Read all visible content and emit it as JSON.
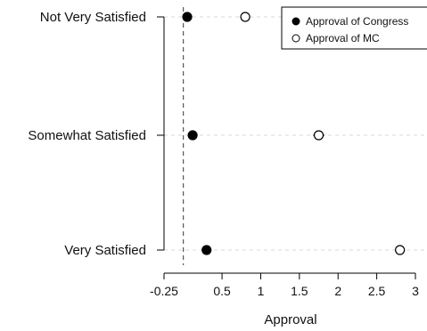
{
  "chart_data": {
    "type": "scatter",
    "categories": [
      "Not Very Satisfied",
      "Somewhat Satisfied",
      "Very Satisfied"
    ],
    "series": [
      {
        "name": "Approval of Congress",
        "marker": "filled-circle",
        "color": "#000000",
        "values": [
          0.05,
          0.12,
          0.3
        ],
        "errors": [
          0.06,
          0.04,
          0.04
        ]
      },
      {
        "name": "Approval of MC",
        "marker": "open-circle",
        "color": "#000000",
        "values": [
          0.8,
          1.75,
          2.8
        ],
        "errors": [
          0.06,
          0.07,
          0.06
        ]
      }
    ],
    "xlabel": "Approval",
    "xticks": [
      "-0.25",
      "0.5",
      "1",
      "1.5",
      "2",
      "2.5",
      "3"
    ],
    "xtick_values": [
      -0.25,
      0.5,
      1.0,
      1.5,
      2.0,
      2.5,
      3.0
    ],
    "xlim": [
      -0.25,
      3.0
    ],
    "reference_line": 0,
    "gridlines": "dashed horizontal at each category",
    "legend_position": "top-right"
  }
}
